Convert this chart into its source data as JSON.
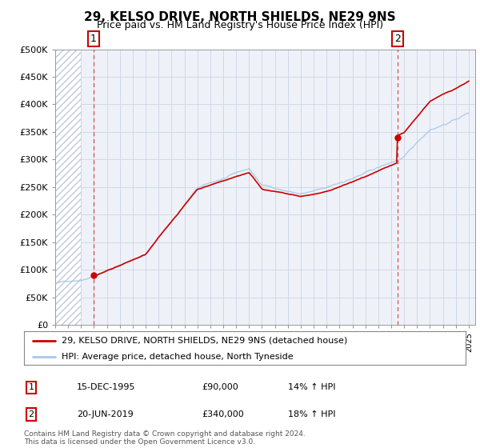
{
  "title": "29, KELSO DRIVE, NORTH SHIELDS, NE29 9NS",
  "subtitle": "Price paid vs. HM Land Registry's House Price Index (HPI)",
  "ylim": [
    0,
    500000
  ],
  "yticks": [
    0,
    50000,
    100000,
    150000,
    200000,
    250000,
    300000,
    350000,
    400000,
    450000,
    500000
  ],
  "ytick_labels": [
    "£0",
    "£50K",
    "£100K",
    "£150K",
    "£200K",
    "£250K",
    "£300K",
    "£350K",
    "£400K",
    "£450K",
    "£500K"
  ],
  "sale1_date": 1995.96,
  "sale1_price": 90000,
  "sale2_date": 2019.47,
  "sale2_price": 340000,
  "hpi_color": "#a8c8e8",
  "price_color": "#cc0000",
  "sale_marker_color": "#cc0000",
  "grid_color": "#d0d8e8",
  "chart_bg": "#eef2f8",
  "legend_label1": "29, KELSO DRIVE, NORTH SHIELDS, NE29 9NS (detached house)",
  "legend_label2": "HPI: Average price, detached house, North Tyneside",
  "table_row1": [
    "1",
    "15-DEC-1995",
    "£90,000",
    "14% ↑ HPI"
  ],
  "table_row2": [
    "2",
    "20-JUN-2019",
    "£340,000",
    "18% ↑ HPI"
  ],
  "footnote": "Contains HM Land Registry data © Crown copyright and database right 2024.\nThis data is licensed under the Open Government Licence v3.0."
}
